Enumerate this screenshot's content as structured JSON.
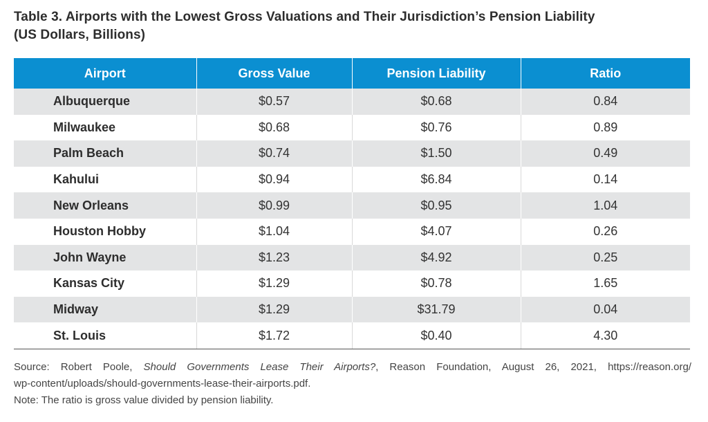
{
  "title": {
    "line1": "Table 3. Airports with the Lowest Gross Valuations and Their Jurisdiction’s Pension Liability",
    "line2": "(US Dollars, Billions)"
  },
  "table": {
    "headers": [
      "Airport",
      "Gross Value",
      "Pension Liability",
      "Ratio"
    ],
    "rows": [
      {
        "airport": "Albuquerque",
        "gross_value": "$0.57",
        "pension_liability": "$0.68",
        "ratio": "0.84"
      },
      {
        "airport": "Milwaukee",
        "gross_value": "$0.68",
        "pension_liability": "$0.76",
        "ratio": "0.89"
      },
      {
        "airport": "Palm Beach",
        "gross_value": "$0.74",
        "pension_liability": "$1.50",
        "ratio": "0.49"
      },
      {
        "airport": "Kahului",
        "gross_value": "$0.94",
        "pension_liability": "$6.84",
        "ratio": "0.14"
      },
      {
        "airport": "New Orleans",
        "gross_value": "$0.99",
        "pension_liability": "$0.95",
        "ratio": "1.04"
      },
      {
        "airport": "Houston Hobby",
        "gross_value": "$1.04",
        "pension_liability": "$4.07",
        "ratio": "0.26"
      },
      {
        "airport": "John Wayne",
        "gross_value": "$1.23",
        "pension_liability": "$4.92",
        "ratio": "0.25"
      },
      {
        "airport": "Kansas City",
        "gross_value": "$1.29",
        "pension_liability": "$0.78",
        "ratio": "1.65"
      },
      {
        "airport": "Midway",
        "gross_value": "$1.29",
        "pension_liability": "$31.79",
        "ratio": "0.04"
      },
      {
        "airport": "St. Louis",
        "gross_value": "$1.72",
        "pension_liability": "$0.40",
        "ratio": "4.30"
      }
    ]
  },
  "source": {
    "prefix": "Source: Robert Poole, ",
    "work_title": "Should Governments Lease Their Airports?",
    "suffix": ", Reason Foundation, August 26, 2021, https://reason.org/",
    "line2": "wp-content/uploads/should-governments-lease-their-airports.pdf."
  },
  "note": "Note: The ratio is gross value divided by pension liability.",
  "colors": {
    "header_bg": "#0b8fd1",
    "stripe_bg": "#e3e4e5"
  }
}
